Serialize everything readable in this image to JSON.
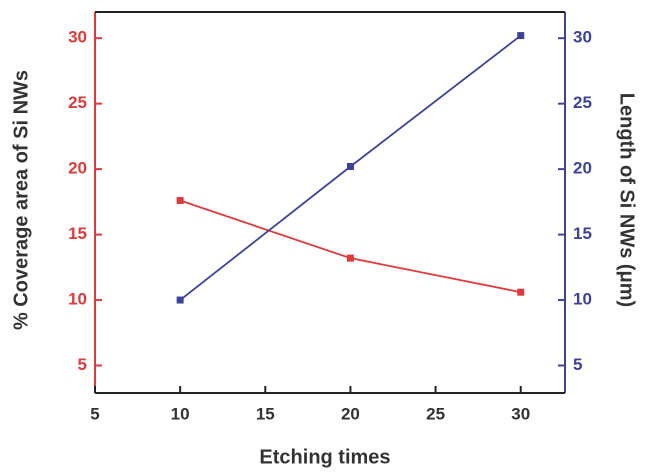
{
  "chart_data": {
    "type": "line",
    "x_label": "Etching times",
    "y_label": "% Coverage area of Si NWs",
    "y2_label": "Length of Si NWs (μm)",
    "x": [
      10,
      20,
      30
    ],
    "series": [
      {
        "name": "% Coverage area of Si NWs",
        "color": "#e03a3a",
        "values": [
          17.6,
          13.2,
          10.6
        ]
      },
      {
        "name": "Length of Si NWs (μm)",
        "color": "#3c4399",
        "values": [
          10,
          20.2,
          30.2
        ],
        "axis": "y2"
      }
    ],
    "xlim": [
      5,
      32.6
    ],
    "xticks": [
      5,
      10,
      15,
      20,
      25,
      30
    ],
    "ylim": [
      2.9,
      32
    ],
    "yticks": [
      5,
      10,
      15,
      20,
      25,
      30
    ],
    "y2lim": [
      2.9,
      32
    ],
    "y2ticks": [
      5,
      10,
      15,
      20,
      25,
      30
    ]
  }
}
